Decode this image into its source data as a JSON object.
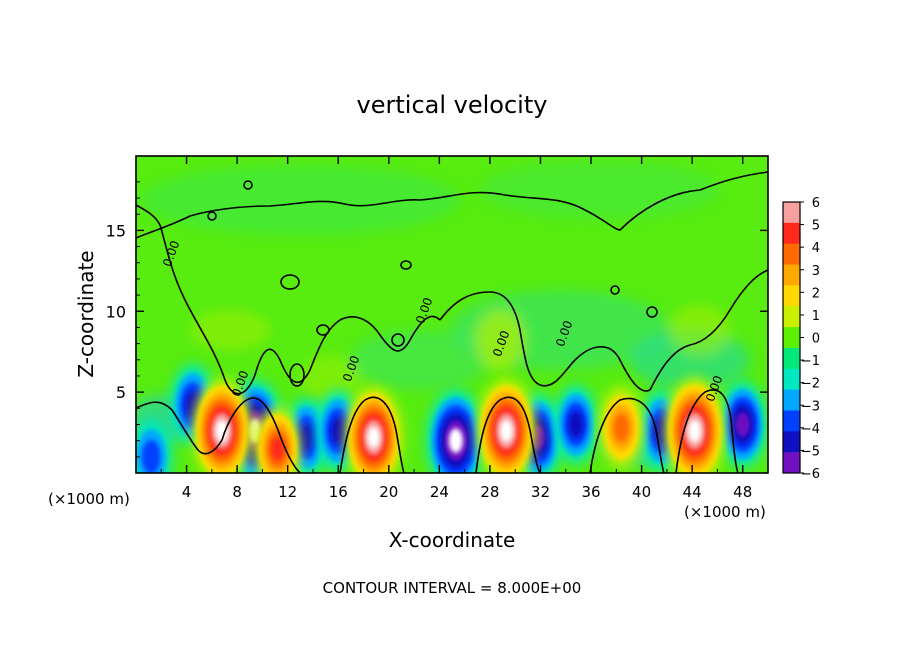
{
  "chart_data": {
    "type": "heatmap",
    "title": "vertical velocity",
    "xlabel": "X-coordinate",
    "ylabel": "Z-coordinate",
    "x_unit_left": "(×1000 m)",
    "x_unit_right": "(×1000 m)",
    "footer": "CONTOUR INTERVAL = 8.000E+00",
    "contour_label": "0.00",
    "xlim": [
      0,
      50
    ],
    "ylim": [
      0,
      19.6
    ],
    "xticks": [
      4,
      8,
      12,
      16,
      20,
      24,
      28,
      32,
      36,
      40,
      44,
      48
    ],
    "yticks": [
      5,
      10,
      15
    ],
    "colorbar": {
      "ticks": [
        6,
        5,
        4,
        3,
        2,
        1,
        0,
        -1,
        -2,
        -3,
        -4,
        -5,
        -6
      ],
      "colors": [
        "#f7a0a0",
        "#ff2a1a",
        "#ff6a00",
        "#ffa800",
        "#ffd800",
        "#c8f000",
        "#5cf000",
        "#00e878",
        "#00e8c0",
        "#00a8ff",
        "#0040ff",
        "#1010c0",
        "#7010c0"
      ]
    },
    "updrafts": [
      {
        "x": 6.8,
        "z": 2.6,
        "peak": 8.5
      },
      {
        "x": 11.2,
        "z": 1.5,
        "peak": 4.5
      },
      {
        "x": 18.8,
        "z": 2.2,
        "peak": 8.0
      },
      {
        "x": 29.3,
        "z": 2.6,
        "peak": 8.5
      },
      {
        "x": 38.4,
        "z": 2.8,
        "peak": 4.0
      },
      {
        "x": 44.2,
        "z": 2.6,
        "peak": 9.0
      }
    ],
    "downdrafts": [
      {
        "x": 4.5,
        "z": 4.2,
        "peak": -4.0
      },
      {
        "x": 9.4,
        "z": 2.6,
        "peak": -8.0
      },
      {
        "x": 13.5,
        "z": 2.2,
        "peak": -3.5
      },
      {
        "x": 16.0,
        "z": 2.6,
        "peak": -4.0
      },
      {
        "x": 25.3,
        "z": 2.0,
        "peak": -8.0
      },
      {
        "x": 31.8,
        "z": 2.2,
        "peak": -5.0
      },
      {
        "x": 34.8,
        "z": 3.0,
        "peak": -3.5
      },
      {
        "x": 41.6,
        "z": 2.6,
        "peak": -4.0
      },
      {
        "x": 48.0,
        "z": 3.0,
        "peak": -5.0
      },
      {
        "x": 1.2,
        "z": 1.0,
        "peak": -3.0
      }
    ]
  }
}
